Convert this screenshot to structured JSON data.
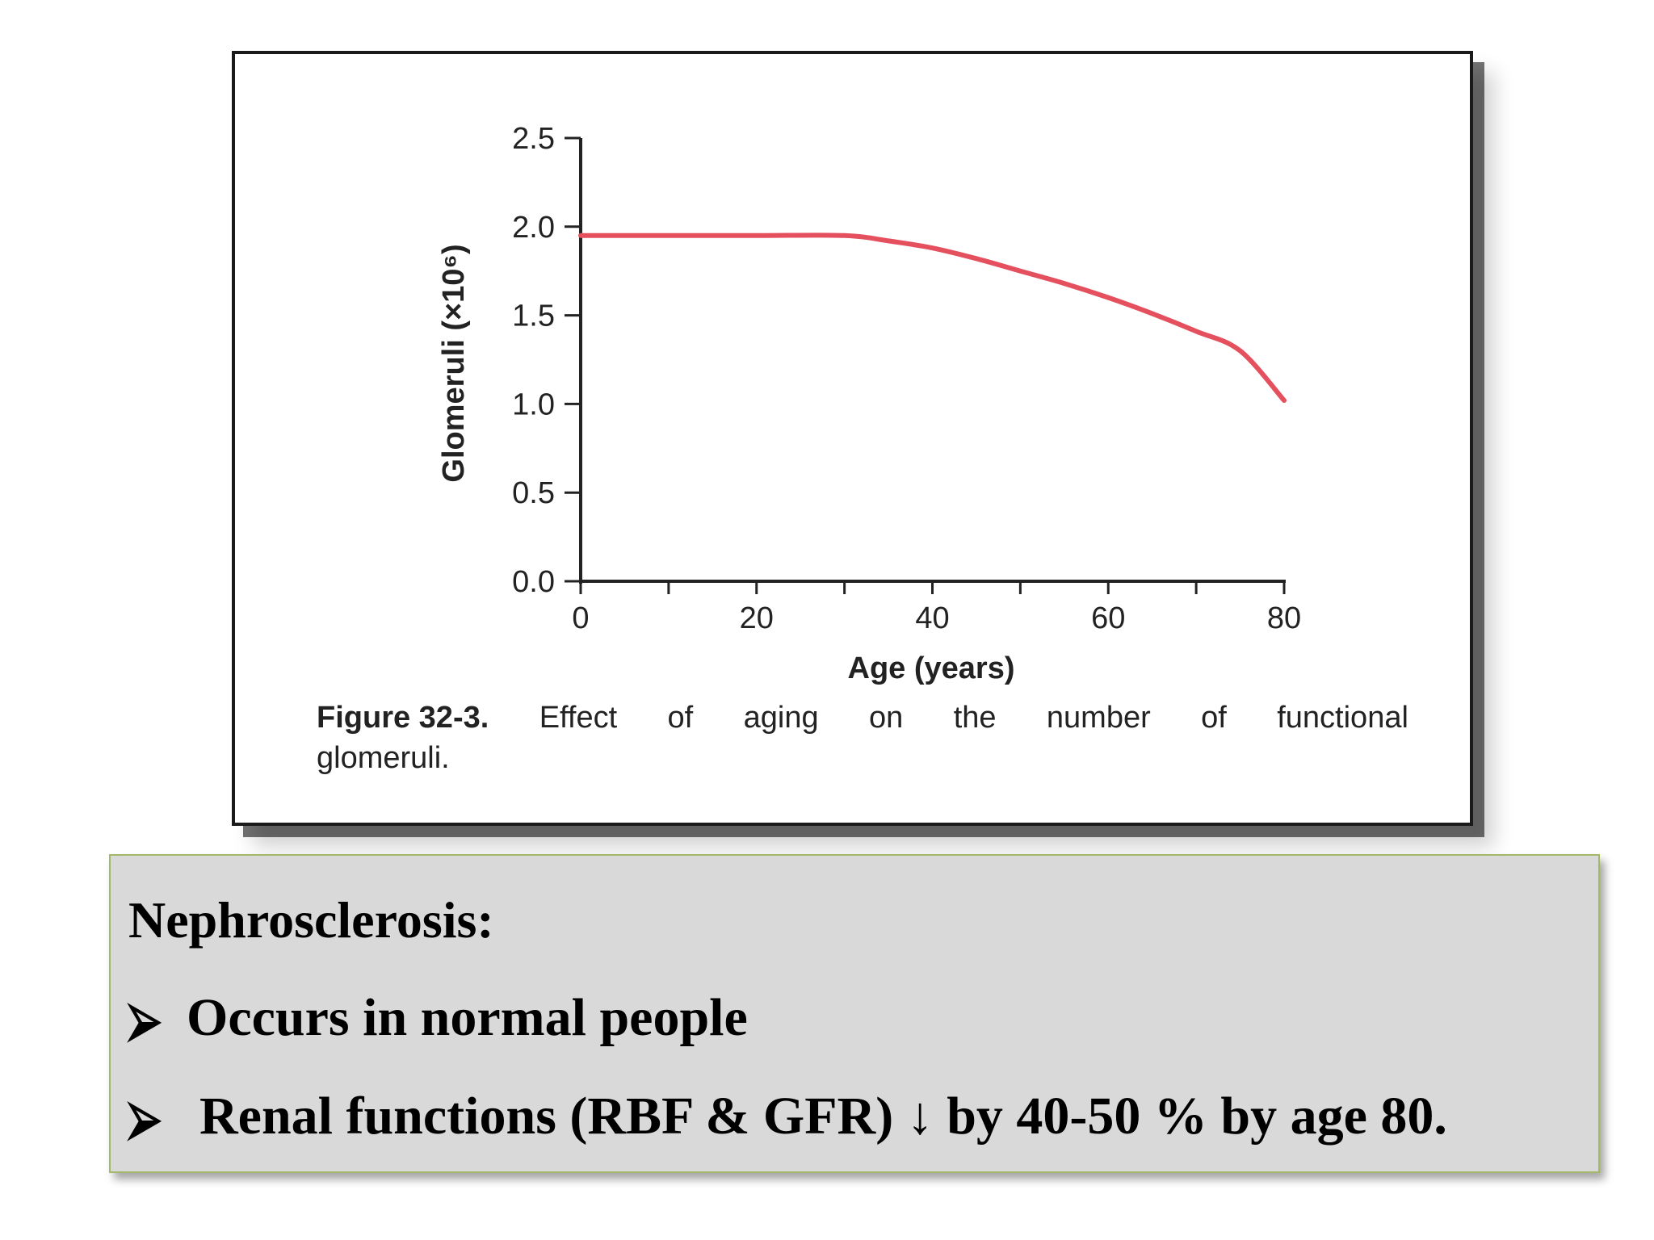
{
  "chart_data": {
    "type": "line",
    "title": "",
    "xlabel": "Age (years)",
    "ylabel": "Glomeruli (×10⁶)",
    "xlim": [
      0,
      80
    ],
    "ylim": [
      0,
      2.5
    ],
    "x_ticks": [
      "0",
      "20",
      "40",
      "60",
      "80"
    ],
    "y_ticks": [
      "0.0",
      "0.5",
      "1.0",
      "1.5",
      "2.0",
      "2.5"
    ],
    "series": [
      {
        "color": "#e5505e",
        "x": [
          0,
          10,
          20,
          30,
          35,
          40,
          45,
          50,
          55,
          60,
          65,
          70,
          75,
          80
        ],
        "y": [
          1.95,
          1.95,
          1.95,
          1.95,
          1.92,
          1.88,
          1.82,
          1.75,
          1.68,
          1.6,
          1.51,
          1.41,
          1.3,
          1.02
        ]
      }
    ],
    "grid": false
  },
  "caption": {
    "label": "Figure 32-3.",
    "line1_words": [
      "Effect",
      "of",
      "aging",
      "on",
      "the",
      "number",
      "of",
      "functional"
    ],
    "line2": "glomeruli."
  },
  "notes": {
    "title": "Nephrosclerosis:",
    "bullet_icon": "arrow-bullet-icon",
    "bullets": [
      "Occurs in normal people",
      "Renal functions (RBF & GFR) ↓ by 40-50 % by age 80."
    ]
  },
  "colors": {
    "line": "#e5505e",
    "notes_background": "#d9d9d9",
    "notes_border": "#a4b86a"
  }
}
